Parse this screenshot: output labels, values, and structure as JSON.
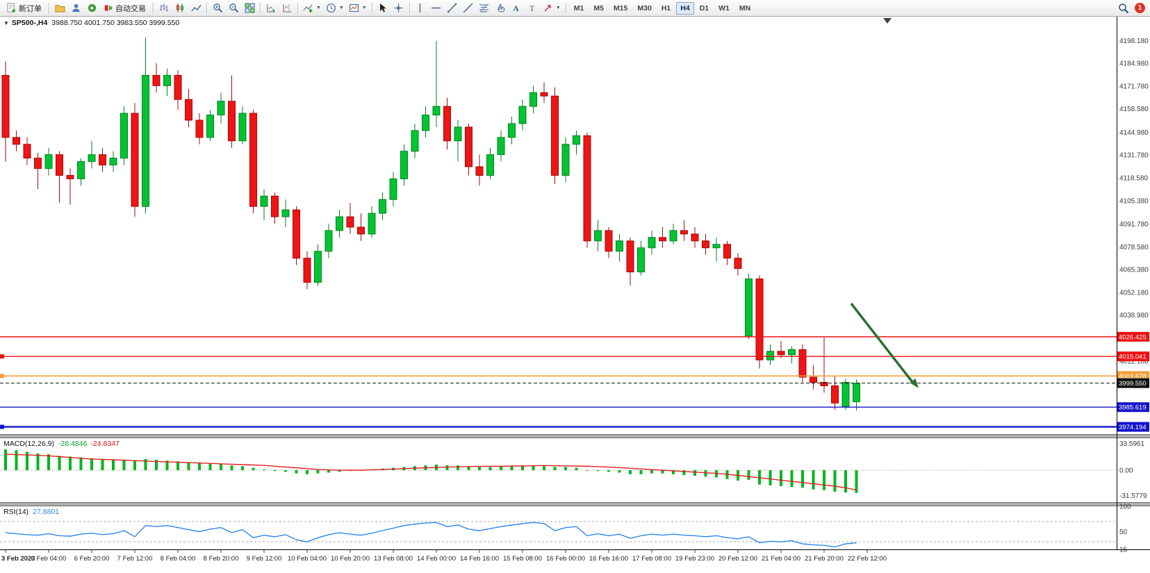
{
  "toolbar": {
    "new_order_label": "新订单",
    "auto_trading_label": "自动交易",
    "timeframes": [
      "M1",
      "M5",
      "M15",
      "M30",
      "H1",
      "H4",
      "D1",
      "W1",
      "MN"
    ],
    "active_timeframe": "H4",
    "notification_count": "1"
  },
  "chart": {
    "collapse_marker": "▼",
    "symbol_title": "SP500-,H4",
    "ohlc_text": "3988.750 4001.750 3983.550 3999.550",
    "y_axis_labels": [
      "4198.180",
      "4184.980",
      "4171.780",
      "4158.580",
      "4144.980",
      "4131.780",
      "4118.580",
      "4105.380",
      "4091.780",
      "4078.580",
      "4065.380",
      "4052.180",
      "4038.980",
      "4012.180"
    ],
    "levels": [
      {
        "price": "4026.425",
        "value": 4026.425,
        "color": "#ee1111",
        "style": "solid",
        "width": 1.4,
        "edge_marker": false,
        "is_current_price": false
      },
      {
        "price": "4015.041",
        "value": 4015.041,
        "color": "#ee1111",
        "style": "solid",
        "width": 1.4,
        "edge_marker": true,
        "is_current_price": false
      },
      {
        "price": "4003.678",
        "value": 4003.678,
        "color": "#efa03a",
        "style": "solid",
        "width": 1.6,
        "edge_marker": true,
        "is_current_price": false
      },
      {
        "price": "3999.550",
        "value": 3999.55,
        "color": "#111111",
        "style": "dashed",
        "width": 1,
        "edge_marker": false,
        "is_current_price": true
      },
      {
        "price": "3985.619",
        "value": 3985.619,
        "color": "#1414cc",
        "style": "solid",
        "width": 1.4,
        "edge_marker": false,
        "is_current_price": false
      },
      {
        "price": "3974.194",
        "value": 3974.194,
        "color": "#1414cc",
        "style": "solid",
        "width": 2.4,
        "edge_marker": true,
        "is_current_price": false
      }
    ],
    "colors": {
      "bull": "#00c432",
      "bull_border": "#008022",
      "bear": "#f01414",
      "bear_border": "#a00a0a",
      "background": "#ffffff",
      "axis_text": "#3a3a3a",
      "arrow": "#2d7031"
    }
  },
  "macd_panel": {
    "label": "MACD(12,26,9)",
    "main_value": "-28.4846",
    "signal_value": "-24.8347",
    "scale_labels": [
      "33.5961",
      "0.00",
      "-31.5779"
    ],
    "histogram_color": "#00b61c",
    "signal_color": "#e02020"
  },
  "rsi_panel": {
    "label": "RSI(14)",
    "value": "27.8801",
    "scale_labels": [
      "100",
      "50",
      "15"
    ],
    "level_lines": [
      70,
      30
    ],
    "line_color": "#2e86e8"
  },
  "chart_data": {
    "type": "candlestick",
    "symbol": "SP500-",
    "timeframe": "H4",
    "price_range": [
      3970,
      4212
    ],
    "label_every_n_candles": 4,
    "x_labels": [
      "3 Feb 2023",
      "6 Feb 04:00",
      "6 Feb 20:00",
      "7 Feb 12:00",
      "8 Feb 04:00",
      "8 Feb 20:00",
      "9 Feb 12:00",
      "10 Feb 04:00",
      "10 Feb 20:00",
      "13 Feb 08:00",
      "14 Feb 00:00",
      "14 Feb 16:00",
      "15 Feb 08:00",
      "16 Feb 00:00",
      "16 Feb 16:00",
      "17 Feb 08:00",
      "19 Feb 23:00",
      "20 Feb 12:00",
      "21 Feb 04:00",
      "21 Feb 20:00",
      "22 Feb 12:00"
    ],
    "candles_ohlc": [
      [
        4178,
        4186,
        4128,
        4142
      ],
      [
        4142,
        4146,
        4134,
        4138
      ],
      [
        4138,
        4142,
        4126,
        4130
      ],
      [
        4130,
        4133,
        4112,
        4124
      ],
      [
        4124,
        4136,
        4120,
        4132
      ],
      [
        4132,
        4134,
        4104,
        4120
      ],
      [
        4120,
        4124,
        4103,
        4118
      ],
      [
        4118,
        4130,
        4114,
        4128
      ],
      [
        4128,
        4140,
        4124,
        4132
      ],
      [
        4132,
        4136,
        4122,
        4126
      ],
      [
        4126,
        4134,
        4122,
        4130
      ],
      [
        4130,
        4160,
        4126,
        4156
      ],
      [
        4156,
        4162,
        4096,
        4102
      ],
      [
        4102,
        4200,
        4098,
        4178
      ],
      [
        4178,
        4185,
        4168,
        4172
      ],
      [
        4172,
        4182,
        4166,
        4178
      ],
      [
        4178,
        4181,
        4158,
        4164
      ],
      [
        4164,
        4170,
        4148,
        4152
      ],
      [
        4152,
        4156,
        4138,
        4142
      ],
      [
        4142,
        4158,
        4140,
        4155
      ],
      [
        4155,
        4168,
        4150,
        4163
      ],
      [
        4163,
        4178,
        4136,
        4140
      ],
      [
        4140,
        4160,
        4138,
        4156
      ],
      [
        4156,
        4158,
        4098,
        4102
      ],
      [
        4102,
        4112,
        4094,
        4108
      ],
      [
        4108,
        4110,
        4092,
        4096
      ],
      [
        4096,
        4106,
        4090,
        4100
      ],
      [
        4100,
        4102,
        4068,
        4072
      ],
      [
        4072,
        4076,
        4054,
        4058
      ],
      [
        4058,
        4080,
        4056,
        4076
      ],
      [
        4076,
        4092,
        4072,
        4088
      ],
      [
        4088,
        4100,
        4084,
        4096
      ],
      [
        4096,
        4104,
        4086,
        4090
      ],
      [
        4090,
        4098,
        4082,
        4086
      ],
      [
        4086,
        4102,
        4084,
        4098
      ],
      [
        4098,
        4110,
        4094,
        4106
      ],
      [
        4106,
        4122,
        4102,
        4118
      ],
      [
        4118,
        4138,
        4114,
        4134
      ],
      [
        4134,
        4150,
        4130,
        4146
      ],
      [
        4146,
        4160,
        4142,
        4155
      ],
      [
        4155,
        4198,
        4148,
        4160
      ],
      [
        4160,
        4165,
        4135,
        4140
      ],
      [
        4140,
        4152,
        4128,
        4148
      ],
      [
        4148,
        4150,
        4120,
        4125
      ],
      [
        4125,
        4132,
        4114,
        4120
      ],
      [
        4120,
        4136,
        4118,
        4132
      ],
      [
        4132,
        4146,
        4128,
        4142
      ],
      [
        4142,
        4154,
        4138,
        4150
      ],
      [
        4150,
        4164,
        4146,
        4160
      ],
      [
        4160,
        4172,
        4156,
        4168
      ],
      [
        4168,
        4174,
        4162,
        4166
      ],
      [
        4166,
        4171,
        4115,
        4120
      ],
      [
        4120,
        4142,
        4116,
        4138
      ],
      [
        4138,
        4146,
        4132,
        4143
      ],
      [
        4143,
        4145,
        4078,
        4082
      ],
      [
        4082,
        4094,
        4076,
        4088
      ],
      [
        4088,
        4090,
        4072,
        4076
      ],
      [
        4076,
        4086,
        4070,
        4082
      ],
      [
        4082,
        4084,
        4056,
        4064
      ],
      [
        4064,
        4082,
        4062,
        4078
      ],
      [
        4078,
        4088,
        4074,
        4084
      ],
      [
        4084,
        4090,
        4078,
        4082
      ],
      [
        4082,
        4092,
        4080,
        4088
      ],
      [
        4088,
        4094,
        4082,
        4086
      ],
      [
        4086,
        4090,
        4078,
        4082
      ],
      [
        4082,
        4086,
        4074,
        4078
      ],
      [
        4078,
        4084,
        4070,
        4080
      ],
      [
        4080,
        4082,
        4068,
        4072
      ],
      [
        4072,
        4075,
        4062,
        4066
      ],
      [
        4027,
        4063,
        4025,
        4060
      ],
      [
        4060,
        4062,
        4008,
        4013
      ],
      [
        4013,
        4022,
        4010,
        4018
      ],
      [
        4018,
        4024,
        4014,
        4016
      ],
      [
        4016,
        4021,
        4011,
        4019
      ],
      [
        4019,
        4022,
        4000,
        4003
      ],
      [
        4003,
        4010,
        3996,
        4000
      ],
      [
        4000,
        4026,
        3994,
        3998
      ],
      [
        3998,
        4004,
        3984,
        3988
      ],
      [
        3986,
        4002,
        3984,
        4000
      ],
      [
        3988.75,
        4001.75,
        3983.55,
        3999.55
      ]
    ],
    "indicators": {
      "macd": {
        "type": "bar+line",
        "range": [
          -40,
          40
        ],
        "histogram": [
          26,
          25,
          23,
          21,
          20,
          18,
          17,
          16,
          15,
          14,
          13,
          13,
          12,
          14,
          13,
          12,
          11,
          10,
          9,
          8,
          8,
          6,
          5,
          3,
          1,
          -1,
          -2,
          -4,
          -5,
          -4,
          -3,
          -2,
          -1,
          0,
          1,
          2,
          3,
          4,
          5,
          6,
          7,
          6,
          6,
          5,
          4,
          4,
          5,
          5,
          6,
          6,
          5,
          4,
          4,
          3,
          0,
          -1,
          -2,
          -3,
          -5,
          -5,
          -4,
          -4,
          -5,
          -6,
          -7,
          -8,
          -9,
          -11,
          -13,
          -12,
          -18,
          -19,
          -20,
          -21,
          -22,
          -24,
          -25,
          -27,
          -28,
          -28.48
        ],
        "signal": [
          20,
          19.5,
          19,
          18.5,
          18,
          17,
          16,
          15,
          14,
          13.5,
          13,
          12.5,
          12,
          11.5,
          11,
          10.5,
          10,
          9.5,
          9,
          8.5,
          8,
          7.5,
          7,
          6.5,
          6,
          5,
          4,
          3,
          2,
          1,
          0.5,
          0,
          0,
          0,
          0.5,
          1,
          1.5,
          2,
          2.5,
          3,
          3.5,
          4,
          4.3,
          4.6,
          4.8,
          5,
          5,
          5.2,
          5.4,
          5.6,
          5.8,
          5.6,
          5.4,
          5.2,
          5,
          4.5,
          4,
          3.2,
          2.4,
          1.6,
          0.8,
          0,
          -0.8,
          -1.6,
          -2.4,
          -3.2,
          -4,
          -5,
          -6.5,
          -8,
          -9.5,
          -11,
          -12.5,
          -14,
          -15.5,
          -17,
          -18.5,
          -20,
          -22,
          -24.83
        ]
      },
      "rsi": {
        "type": "line",
        "range": [
          15,
          100
        ],
        "values": [
          48,
          46,
          44,
          43,
          46,
          42,
          41,
          45,
          47,
          44,
          46,
          52,
          40,
          62,
          60,
          62,
          58,
          54,
          50,
          55,
          58,
          48,
          54,
          38,
          43,
          40,
          44,
          34,
          30,
          38,
          44,
          48,
          45,
          43,
          47,
          52,
          57,
          62,
          65,
          67,
          68,
          60,
          63,
          55,
          52,
          56,
          60,
          63,
          66,
          68,
          66,
          52,
          58,
          60,
          42,
          46,
          42,
          45,
          37,
          42,
          45,
          43,
          45,
          43,
          42,
          40,
          42,
          38,
          36,
          40,
          28,
          31,
          30,
          32,
          26,
          24,
          23,
          20,
          26,
          27.88
        ]
      }
    }
  }
}
